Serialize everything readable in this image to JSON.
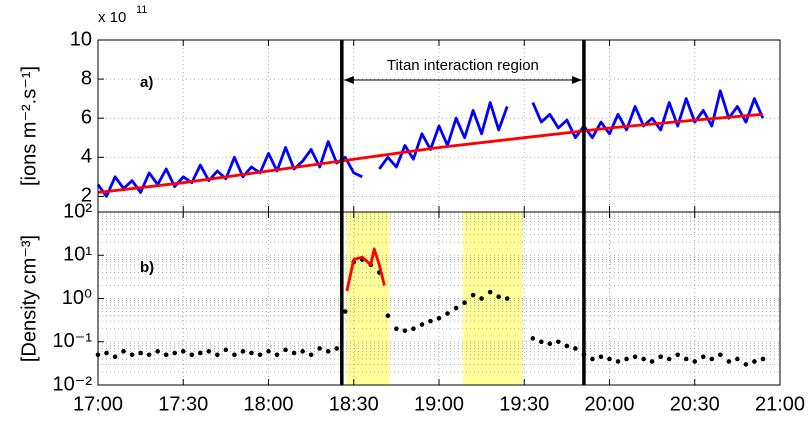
{
  "chart_data": [
    {
      "type": "line",
      "label": "a)",
      "ylabel": "[ions m⁻².s⁻¹]",
      "scale_label": "x 10",
      "scale_exponent": "11",
      "annotation": "Titan interaction region",
      "xlim": [
        17,
        21
      ],
      "xticks": [
        17,
        17.5,
        18,
        18.5,
        19,
        19.5,
        20,
        20.5,
        21
      ],
      "show_xtick_labels": false,
      "ylim": [
        1.2,
        10
      ],
      "yticks": [
        2,
        4,
        6,
        8,
        10
      ],
      "grid": true,
      "vlines": [
        18.43,
        19.85
      ],
      "series": [
        {
          "name": "flux",
          "color": "#0000ff",
          "style": "line",
          "x": [
            17.0,
            17.05,
            17.1,
            17.15,
            17.2,
            17.25,
            17.3,
            17.35,
            17.4,
            17.45,
            17.5,
            17.55,
            17.6,
            17.65,
            17.7,
            17.75,
            17.8,
            17.85,
            17.9,
            17.95,
            18.0,
            18.05,
            18.1,
            18.15,
            18.2,
            18.25,
            18.3,
            18.35,
            18.4,
            18.45,
            18.5,
            18.55,
            18.6,
            18.65,
            18.7,
            18.75,
            18.8,
            18.85,
            18.9,
            18.95,
            19.0,
            19.05,
            19.1,
            19.15,
            19.2,
            19.25,
            19.3,
            19.35,
            19.4,
            19.45,
            19.5,
            19.55,
            19.6,
            19.65,
            19.7,
            19.75,
            19.8,
            19.85,
            19.9,
            19.95,
            20.0,
            20.05,
            20.1,
            20.15,
            20.2,
            20.25,
            20.3,
            20.35,
            20.4,
            20.45,
            20.5,
            20.55,
            20.6,
            20.65,
            20.7,
            20.75,
            20.8,
            20.85,
            20.9
          ],
          "values": [
            2.6,
            2.0,
            3.0,
            2.4,
            2.8,
            2.2,
            3.2,
            2.6,
            3.4,
            2.5,
            3.0,
            2.7,
            3.6,
            2.8,
            3.3,
            2.9,
            4.0,
            3.0,
            3.5,
            3.2,
            4.2,
            3.3,
            4.5,
            3.4,
            3.8,
            4.4,
            3.5,
            4.8,
            3.7,
            4.0,
            3.2,
            3.0,
            null,
            3.4,
            4.0,
            3.5,
            4.6,
            3.9,
            5.2,
            4.4,
            5.6,
            4.6,
            6.0,
            5.0,
            6.4,
            5.2,
            6.8,
            5.4,
            6.6,
            null,
            null,
            6.8,
            5.8,
            6.2,
            5.5,
            5.9,
            5.0,
            5.6,
            5.0,
            5.8,
            5.2,
            6.2,
            5.4,
            6.6,
            5.6,
            6.0,
            5.4,
            6.8,
            5.6,
            7.0,
            5.8,
            6.4,
            5.6,
            7.4,
            6.0,
            6.6,
            5.8,
            7.0,
            6.0
          ]
        },
        {
          "name": "fit",
          "color": "#ff0000",
          "style": "line",
          "x": [
            17.0,
            17.5,
            18.0,
            18.5,
            19.0,
            19.5,
            20.0,
            20.5,
            20.9
          ],
          "values": [
            2.2,
            2.7,
            3.3,
            3.9,
            4.5,
            5.0,
            5.5,
            5.9,
            6.2
          ]
        }
      ]
    },
    {
      "type": "line",
      "label": "b)",
      "ylabel": "[Density cm⁻³]",
      "log_scale": true,
      "xlim": [
        17,
        21
      ],
      "xticks": [
        {
          "value": 17,
          "label": "17:00"
        },
        {
          "value": 17.5,
          "label": "17:30"
        },
        {
          "value": 18,
          "label": "18:00"
        },
        {
          "value": 18.5,
          "label": "18:30"
        },
        {
          "value": 19,
          "label": "19:00"
        },
        {
          "value": 19.5,
          "label": "19:30"
        },
        {
          "value": 20,
          "label": "20:00"
        },
        {
          "value": 20.5,
          "label": "20:30"
        },
        {
          "value": 21,
          "label": "21:00"
        }
      ],
      "show_xtick_labels": true,
      "ylim": [
        0.01,
        100
      ],
      "yticks": [
        {
          "value": 0.01,
          "label": "10⁻²"
        },
        {
          "value": 0.1,
          "label": "10⁻¹"
        },
        {
          "value": 1,
          "label": "10⁰"
        },
        {
          "value": 10,
          "label": "10¹"
        },
        {
          "value": 100,
          "label": "10²"
        }
      ],
      "grid": true,
      "vlines": [
        18.43,
        19.85
      ],
      "spans": [
        [
          18.46,
          18.71
        ],
        [
          19.14,
          19.49
        ]
      ],
      "span_color": "#ffff99",
      "series": [
        {
          "name": "density",
          "color": "#000000",
          "style": "dots",
          "x": [
            17.0,
            17.05,
            17.1,
            17.15,
            17.2,
            17.25,
            17.3,
            17.35,
            17.4,
            17.45,
            17.5,
            17.55,
            17.6,
            17.65,
            17.7,
            17.75,
            17.8,
            17.85,
            17.9,
            17.95,
            18.0,
            18.05,
            18.1,
            18.15,
            18.2,
            18.25,
            18.3,
            18.35,
            18.4,
            18.45,
            18.5,
            18.55,
            18.6,
            18.65,
            18.7,
            18.75,
            18.8,
            18.85,
            18.9,
            18.95,
            19.0,
            19.05,
            19.1,
            19.15,
            19.2,
            19.25,
            19.3,
            19.35,
            19.4,
            19.45,
            19.5,
            19.55,
            19.6,
            19.65,
            19.7,
            19.75,
            19.8,
            19.85,
            19.9,
            19.95,
            20.0,
            20.05,
            20.1,
            20.15,
            20.2,
            20.25,
            20.3,
            20.35,
            20.4,
            20.45,
            20.5,
            20.55,
            20.6,
            20.65,
            20.7,
            20.75,
            20.8,
            20.85,
            20.9
          ],
          "values": [
            0.05,
            0.055,
            0.045,
            0.06,
            0.05,
            0.055,
            0.05,
            0.06,
            0.05,
            0.055,
            0.06,
            0.05,
            0.055,
            0.06,
            0.05,
            0.065,
            0.05,
            0.06,
            0.055,
            0.05,
            0.06,
            0.05,
            0.065,
            0.055,
            0.06,
            0.05,
            0.07,
            0.06,
            0.07,
            0.5,
            7,
            8,
            6,
            4,
            0.4,
            0.2,
            0.18,
            0.2,
            0.25,
            0.3,
            0.35,
            0.45,
            0.6,
            0.8,
            1.2,
            1.0,
            1.4,
            1.1,
            1.0,
            null,
            null,
            0.12,
            0.1,
            0.09,
            0.1,
            0.08,
            0.07,
            0.05,
            0.04,
            0.045,
            0.04,
            0.035,
            0.04,
            0.045,
            0.04,
            0.035,
            0.045,
            0.04,
            0.05,
            0.04,
            0.035,
            0.045,
            0.04,
            0.05,
            0.035,
            0.04,
            0.03,
            0.035,
            0.04
          ]
        },
        {
          "name": "density-peak",
          "color": "#ff0000",
          "style": "line",
          "x": [
            18.46,
            18.5,
            18.55,
            18.6,
            18.62,
            18.65,
            18.68
          ],
          "values": [
            1.5,
            8,
            9,
            6,
            14,
            6,
            2
          ]
        }
      ]
    }
  ]
}
